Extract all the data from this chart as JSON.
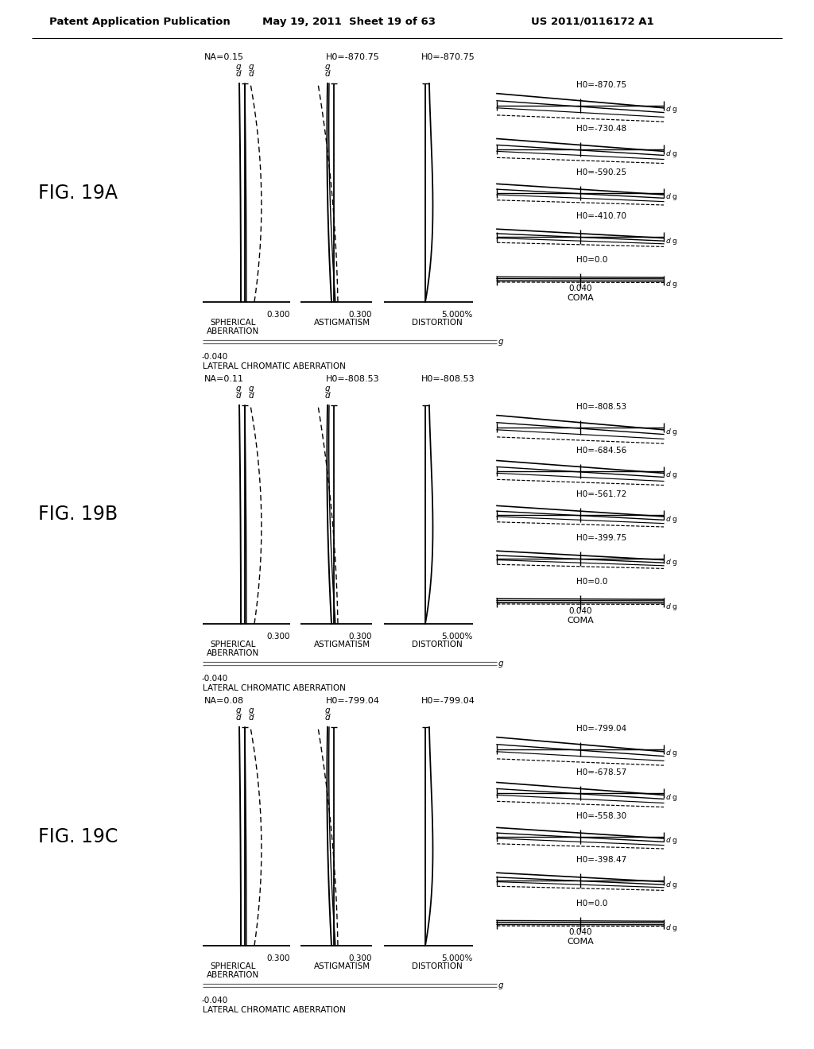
{
  "background": "#ffffff",
  "header_left": "Patent Application Publication",
  "header_mid": "May 19, 2011  Sheet 19 of 63",
  "header_right": "US 2011/0116172 A1",
  "figures": [
    {
      "label": "FIG. 19A",
      "na": "NA=0.15",
      "h0_astig": "H0=-870.75",
      "h0_dist": "H0=-870.75",
      "sph_scale": "0.300",
      "astig_scale": "0.300",
      "dist_scale": "5.000%",
      "lateral_val": "-0.040",
      "coma_scale": "0.040",
      "coma_h_values": [
        "H0=-870.75",
        "H0=-730.48",
        "H0=-590.25",
        "H0=-410.70",
        "H0=0.0"
      ]
    },
    {
      "label": "FIG. 19B",
      "na": "NA=0.11",
      "h0_astig": "H0=-808.53",
      "h0_dist": "H0=-808.53",
      "sph_scale": "0.300",
      "astig_scale": "0.300",
      "dist_scale": "5.000%",
      "lateral_val": "-0.040",
      "coma_scale": "0.040",
      "coma_h_values": [
        "H0=-808.53",
        "H0=-684.56",
        "H0=-561.72",
        "H0=-399.75",
        "H0=0.0"
      ]
    },
    {
      "label": "FIG. 19C",
      "na": "NA=0.08",
      "h0_astig": "H0=-799.04",
      "h0_dist": "H0=-799.04",
      "sph_scale": "0.300",
      "astig_scale": "0.300",
      "dist_scale": "5.000%",
      "lateral_val": "-0.040",
      "coma_scale": "0.040",
      "coma_h_values": [
        "H0=-799.04",
        "H0=-678.57",
        "H0=-558.30",
        "H0=-398.47",
        "H0=0.0"
      ]
    }
  ]
}
